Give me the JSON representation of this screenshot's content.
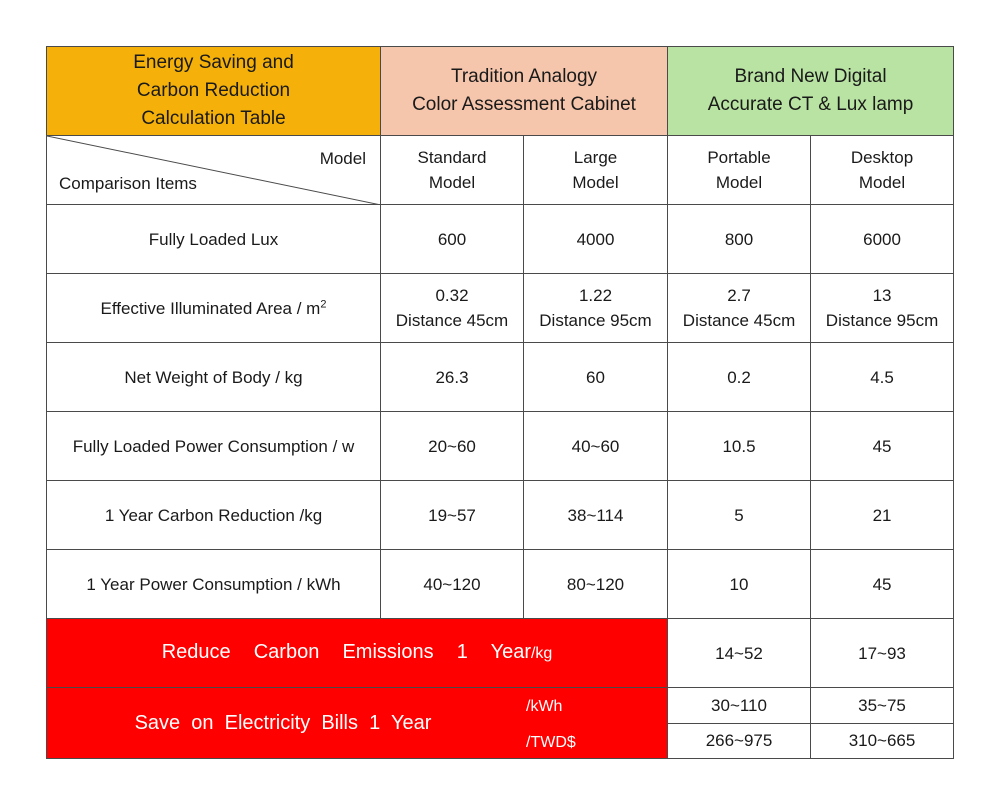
{
  "header": {
    "title": [
      "Energy Saving and",
      "Carbon Reduction",
      "Calculation Table"
    ],
    "traditional": [
      "Tradition Analogy",
      "Color Assessment Cabinet"
    ],
    "digital": [
      "Brand New Digital",
      "Accurate CT & Lux lamp"
    ]
  },
  "corner": {
    "model_label": "Model",
    "items_label": "Comparison Items"
  },
  "models": [
    {
      "line1": "Standard",
      "line2": "Model"
    },
    {
      "line1": "Large",
      "line2": "Model"
    },
    {
      "line1": "Portable",
      "line2": "Model"
    },
    {
      "line1": "Desktop",
      "line2": "Model"
    }
  ],
  "rows": [
    {
      "label": "Fully Loaded Lux",
      "values": [
        "600",
        "4000",
        "800",
        "6000"
      ]
    },
    {
      "label": "Effective Illuminated Area / m",
      "sup": "2",
      "values": [
        "0.32",
        "1.22",
        "2.7",
        "13"
      ],
      "sub_values": [
        "Distance 45cm",
        "Distance 95cm",
        "Distance 45cm",
        "Distance 95cm"
      ]
    },
    {
      "label": "Net Weight of Body / kg",
      "values": [
        "26.3",
        "60",
        "0.2",
        "4.5"
      ]
    },
    {
      "label": "Fully Loaded Power Consumption / w",
      "values": [
        "20~60",
        "40~60",
        "10.5",
        "45"
      ]
    },
    {
      "label": "1 Year Carbon Reduction /kg",
      "values": [
        "19~57",
        "38~114",
        "5",
        "21"
      ]
    },
    {
      "label": "1 Year Power Consumption / kWh",
      "values": [
        "40~120",
        "80~120",
        "10",
        "45"
      ]
    }
  ],
  "reduce": {
    "label": "Reduce  Carbon  Emissions  1  Year",
    "unit": "/kg",
    "values": [
      "14~52",
      "17~93"
    ]
  },
  "save": {
    "label": "Save  on  Electricity  Bills  1  Year",
    "unit_kwh": "/kWh",
    "unit_twd": "/TWD$",
    "kwh_values": [
      "30~110",
      "35~75"
    ],
    "twd_values": [
      "266~975",
      "310~665"
    ]
  },
  "colors": {
    "title_bg": "#f5b10a",
    "traditional_bg": "#f5c6ac",
    "digital_bg": "#b8e3a2",
    "highlight_bg": "#ff0000",
    "border": "#4a4a4a"
  }
}
